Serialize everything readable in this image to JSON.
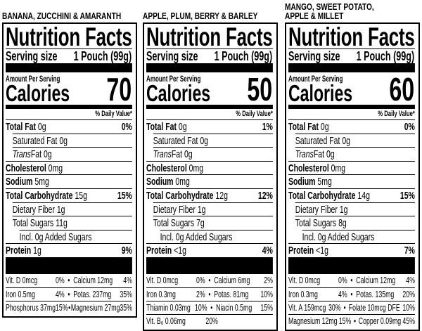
{
  "panels": [
    {
      "product": "BANANA, ZUCCHINI & AMARANTH",
      "heading": "Nutrition Facts",
      "serving_label": "Serving size",
      "serving_value": "1 Pouch (99g)",
      "amount_per_serving": "Amount Per Serving",
      "calories_label": "Calories",
      "calories": "70",
      "dv_header": "% Daily Value*",
      "nutrients": [
        {
          "bold": "Total Fat",
          "rest": " 0g",
          "dv": "0%",
          "indent": 0
        },
        {
          "rest": "Saturated Fat 0g",
          "indent": 1
        },
        {
          "italic": "Trans",
          "rest": "Fat 0g",
          "indent": 1
        },
        {
          "bold": "Cholesterol",
          "rest": " 0mg",
          "indent": 0
        },
        {
          "bold": "Sodium",
          "rest": " 5mg",
          "indent": 0
        },
        {
          "bold": "Total Carbohydrate",
          "rest": " 15g",
          "dv": "15%",
          "indent": 0
        },
        {
          "rest": "Dietary Fiber 1g",
          "indent": 1
        },
        {
          "rest": "Total Sugars 11g",
          "indent": 1
        },
        {
          "rest": "Incl. 0g Added Sugars",
          "indent": 2
        },
        {
          "bold": "Protein",
          "rest": " 1g",
          "dv": "9%",
          "indent": 0
        }
      ],
      "micros": [
        [
          "Vit. D 0mcg",
          "0%",
          "Calcium 12mg",
          "4%"
        ],
        [
          "Iron 0.5mg",
          "4%",
          "Potas. 237mg",
          "35%"
        ],
        [
          "Phosphorus 37mg",
          "15%",
          "Magnesium 27mg",
          "35%"
        ]
      ]
    },
    {
      "product": "APPLE, PLUM, BERRY & BARLEY",
      "heading": "Nutrition Facts",
      "serving_label": "Serving size",
      "serving_value": "1 Pouch (99g)",
      "amount_per_serving": "Amount Per Serving",
      "calories_label": "Calories",
      "calories": "50",
      "dv_header": "% Daily Value*",
      "nutrients": [
        {
          "bold": "Total Fat",
          "rest": " 0g",
          "dv": "1%",
          "indent": 0
        },
        {
          "rest": "Saturated Fat 0g",
          "indent": 1
        },
        {
          "italic": "Trans",
          "rest": "Fat 0g",
          "indent": 1
        },
        {
          "bold": "Cholesterol",
          "rest": " 0mg",
          "indent": 0
        },
        {
          "bold": "Sodium",
          "rest": " 0mg",
          "indent": 0
        },
        {
          "bold": "Total Carbohydrate",
          "rest": " 12g",
          "dv": "12%",
          "indent": 0
        },
        {
          "rest": "Dietary Fiber 1g",
          "indent": 1
        },
        {
          "rest": "Total Sugars 7g",
          "indent": 1
        },
        {
          "rest": "Incl. 0g Added Sugars",
          "indent": 2
        },
        {
          "bold": "Protein",
          "rest": " <1g",
          "dv": "4%",
          "indent": 0
        }
      ],
      "micros": [
        [
          "Vit. D 0mcg",
          "0%",
          "Calcium 6mg",
          "2%"
        ],
        [
          "Iron 0.3mg",
          "2%",
          "Potas. 81mg",
          "10%"
        ],
        [
          "Thiamin 0.03mg",
          "10%",
          "Niacin 0.5mg",
          "15%"
        ],
        [
          "Vit. B₆ 0.06mg",
          "20%"
        ]
      ]
    },
    {
      "product": "MANGO, SWEET POTATO,\nAPPLE & MILLET",
      "heading": "Nutrition Facts",
      "serving_label": "Serving size",
      "serving_value": "1 Pouch (99g)",
      "amount_per_serving": "Amount Per Serving",
      "calories_label": "Calories",
      "calories": "60",
      "dv_header": "% Daily Value*",
      "nutrients": [
        {
          "bold": "Total Fat",
          "rest": " 0g",
          "dv": "0%",
          "indent": 0
        },
        {
          "rest": "Saturated Fat 0g",
          "indent": 1
        },
        {
          "italic": "Trans",
          "rest": "Fat 0g",
          "indent": 1
        },
        {
          "bold": "Cholesterol",
          "rest": " 0mg",
          "indent": 0
        },
        {
          "bold": "Sodium",
          "rest": " 5mg",
          "indent": 0
        },
        {
          "bold": "Total Carbohydrate",
          "rest": " 14g",
          "dv": "15%",
          "indent": 0
        },
        {
          "rest": "Dietary Fiber 1g",
          "indent": 1
        },
        {
          "rest": "Total Sugars 8g",
          "indent": 1
        },
        {
          "rest": "Incl. 0g Added Sugars",
          "indent": 2
        },
        {
          "bold": "Protein",
          "rest": " <1g",
          "dv": "7%",
          "indent": 0
        }
      ],
      "micros": [
        [
          "Vit. D 0mcg",
          "0%",
          "Calcium 12mg",
          "4%"
        ],
        [
          "Iron 0.3mg",
          "4%",
          "Potas. 135mg",
          "20%"
        ],
        [
          "Vit. A 159mcg",
          "30%",
          "Folate 10mcg DFE",
          "10%"
        ],
        [
          "Magnesium 12mg",
          "15%",
          "Copper 0.09mg",
          "45%"
        ]
      ]
    }
  ]
}
